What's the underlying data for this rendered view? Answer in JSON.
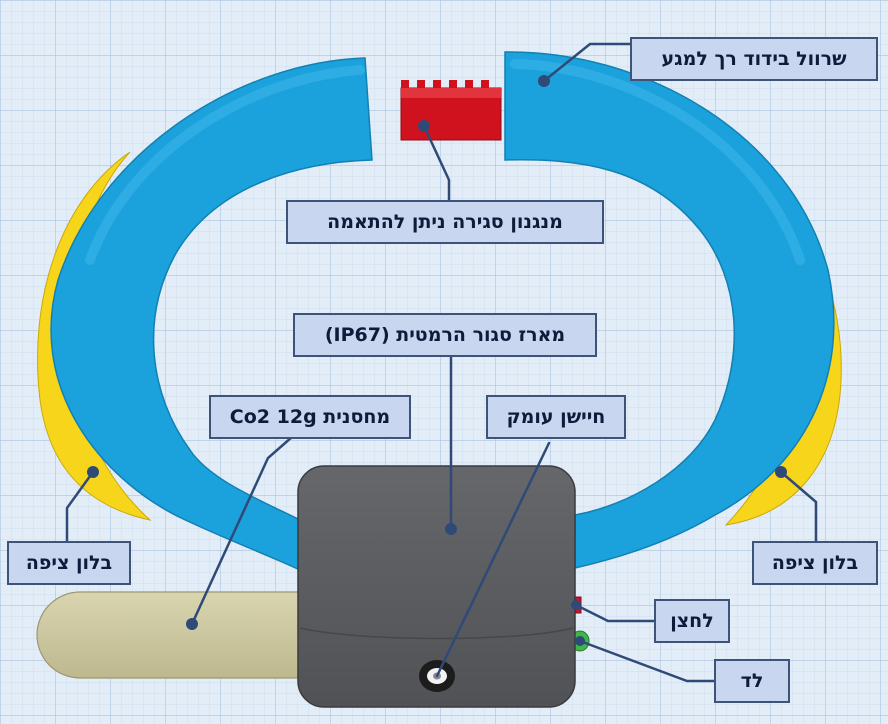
{
  "labels": {
    "sleeve": "שרוול בידוד רך למגע",
    "closure": "מנגנון סגירה ניתן להתאמה",
    "enclosure": "מארז סגור הרמטית (IP67)",
    "co2": "מחסנית Co2 12g",
    "depth_sensor": "חיישן עומק",
    "float_left": "בלון ציפה",
    "float_right": "בלון ציפה",
    "button": "לחצן",
    "led": "לד"
  },
  "colors": {
    "grid_background": "#e3edf7",
    "grid_line": "#b7cde6",
    "ring_blue": "#1ba1dc",
    "float_yellow": "#f7d51a",
    "closure_red": "#d0121e",
    "enclosure_gray": "#5e6064",
    "cartridge_khaki": "#cfcaa2",
    "led_green": "#3fb64a",
    "button_red": "#c0182a",
    "callout_fill": "#c9d6ef",
    "callout_border": "#3d5478",
    "leader_line": "#304a78"
  }
}
